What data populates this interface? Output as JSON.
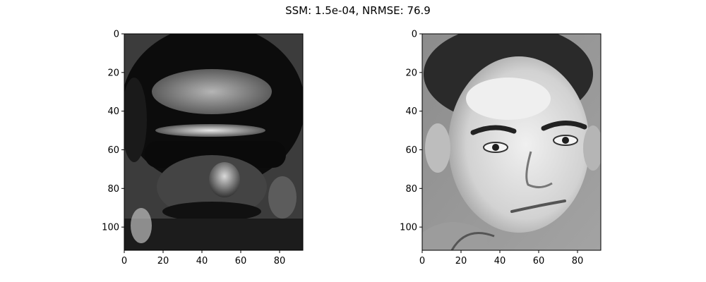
{
  "figure": {
    "title": "SSM: 1.5e-04, NRMSE: 76.9"
  },
  "panels": [
    {
      "name": "reconstructed-face",
      "description_hint": "dark, high-contrast reconstruction of a face",
      "x_ticks": [
        "0",
        "20",
        "40",
        "60",
        "80"
      ],
      "y_ticks": [
        "0",
        "20",
        "40",
        "60",
        "80",
        "100"
      ],
      "x_range": [
        0,
        92
      ],
      "y_range": [
        0,
        112
      ]
    },
    {
      "name": "original-face",
      "description_hint": "grayscale photo of a man's face",
      "x_ticks": [
        "0",
        "20",
        "40",
        "60",
        "80"
      ],
      "y_ticks": [
        "0",
        "20",
        "40",
        "60",
        "80",
        "100"
      ],
      "x_range": [
        0,
        92
      ],
      "y_range": [
        0,
        112
      ]
    }
  ]
}
